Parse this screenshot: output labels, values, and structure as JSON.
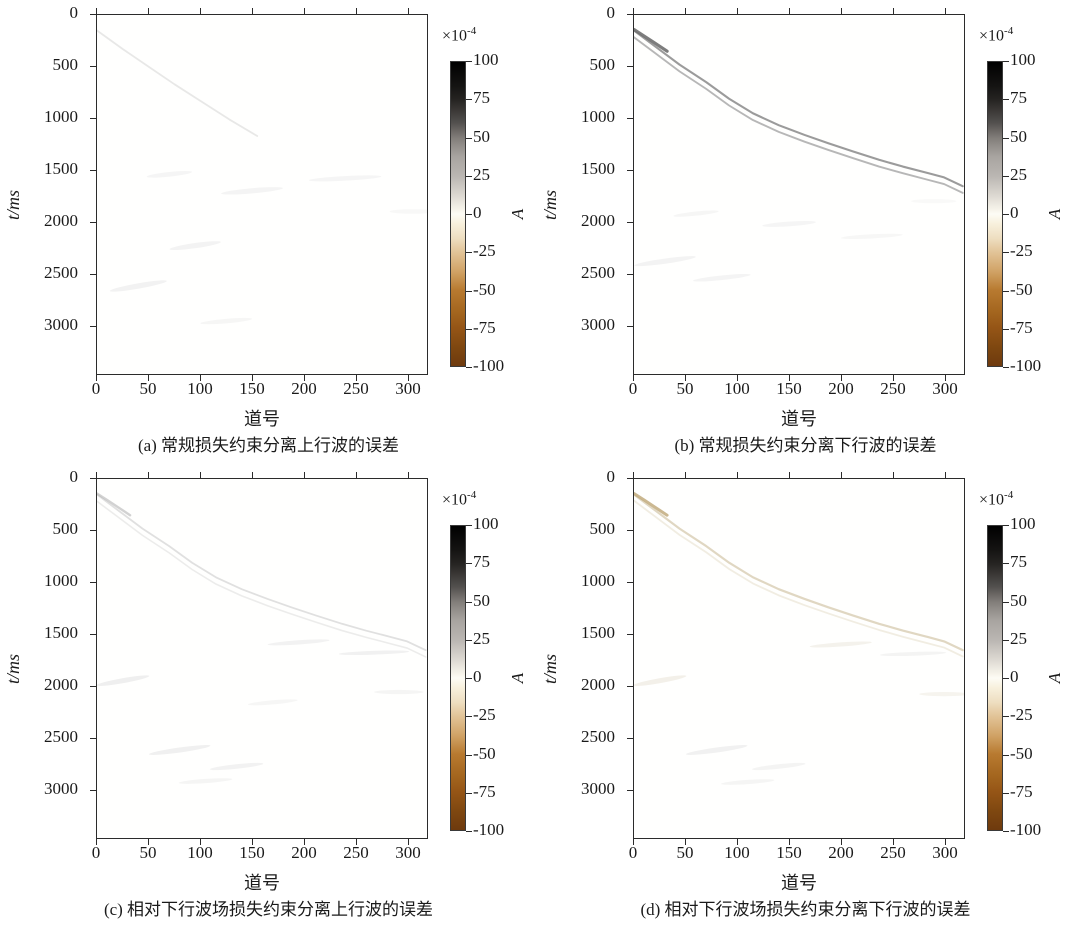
{
  "figure": {
    "background": "#ffffff"
  },
  "axes": {
    "xlabel": "道号",
    "ylabel": "t/ms",
    "x_ticks": [
      0,
      50,
      100,
      150,
      200,
      250,
      300
    ],
    "y_ticks": [
      0,
      500,
      1000,
      1500,
      2000,
      2500,
      3000
    ]
  },
  "colorbar": {
    "scale_mantissa": "×10",
    "scale_exponent": "-4",
    "label": "A",
    "ticks": [
      100,
      75,
      50,
      25,
      0,
      -25,
      -50,
      -75,
      -100
    ],
    "top_color": "#000000",
    "zero_color": "#fdfcf5",
    "bottom_color": "#6e3a0e"
  },
  "panels": [
    {
      "id": "a",
      "caption": "(a) 常规损失约束分离上行波的误差"
    },
    {
      "id": "b",
      "caption": "(b) 常规损失约束分离下行波的误差"
    },
    {
      "id": "c",
      "caption": "(c) 相对下行波场损失约束分离上行波的误差"
    },
    {
      "id": "d",
      "caption": "(d) 相对下行波场损失约束分离下行波的误差"
    }
  ],
  "shared": {
    "direct_wave_points": [
      [
        0,
        150
      ],
      [
        20,
        300
      ],
      [
        44,
        480
      ],
      [
        70,
        650
      ],
      [
        92,
        810
      ],
      [
        115,
        950
      ],
      [
        140,
        1065
      ],
      [
        165,
        1160
      ],
      [
        188,
        1240
      ],
      [
        212,
        1320
      ],
      [
        237,
        1400
      ],
      [
        260,
        1465
      ],
      [
        285,
        1530
      ],
      [
        300,
        1570
      ],
      [
        318,
        1655
      ]
    ],
    "head_points": [
      [
        0,
        140
      ],
      [
        10,
        205
      ],
      [
        20,
        270
      ],
      [
        32,
        350
      ]
    ]
  },
  "chart_data": [
    {
      "type": "heatmap",
      "panel": "a",
      "title": "(a) 常规损失约束分离上行波的误差",
      "xlabel": "道号",
      "ylabel": "t/ms",
      "xlim": [
        0,
        318
      ],
      "ylim": [
        0,
        3470
      ],
      "y_inverted": true,
      "x_ticks": [
        0,
        50,
        100,
        150,
        200,
        250,
        300
      ],
      "y_ticks": [
        0,
        500,
        1000,
        1500,
        2000,
        2500,
        3000
      ],
      "value_scale": "1e-4",
      "value_range_1e4": [
        -100,
        100
      ],
      "colorbar_label": "A",
      "background_value": 0,
      "features": [
        {
          "kind": "curve",
          "name": "faint-direct-residual",
          "points": [
            [
              0,
              150
            ],
            [
              25,
              330
            ],
            [
              50,
              500
            ],
            [
              75,
              670
            ],
            [
              100,
              830
            ],
            [
              128,
              1010
            ],
            [
              155,
              1170
            ]
          ],
          "amplitude_1e4": 5,
          "color": "#cccccc",
          "width": 1.8,
          "opacity": 0.45
        },
        {
          "kind": "smudge",
          "name": "residual-spot",
          "x": 40,
          "t": 2620,
          "rx": 28,
          "ry": 26,
          "rot": -10,
          "color": "#e8e8e8",
          "opacity": 0.55,
          "amplitude_1e4": 3
        },
        {
          "kind": "smudge",
          "name": "residual-spot",
          "x": 95,
          "t": 2230,
          "rx": 25,
          "ry": 25,
          "rot": -8,
          "color": "#e8e8e8",
          "opacity": 0.5,
          "amplitude_1e4": 3
        },
        {
          "kind": "smudge",
          "name": "residual-spot",
          "x": 70,
          "t": 1540,
          "rx": 22,
          "ry": 22,
          "rot": -6,
          "color": "#ececec",
          "opacity": 0.5,
          "amplitude_1e4": 2
        },
        {
          "kind": "smudge",
          "name": "residual-spot",
          "x": 150,
          "t": 1700,
          "rx": 30,
          "ry": 25,
          "rot": -5,
          "color": "#eaeaea",
          "opacity": 0.5,
          "amplitude_1e4": 2
        },
        {
          "kind": "smudge",
          "name": "residual-spot",
          "x": 240,
          "t": 1580,
          "rx": 35,
          "ry": 22,
          "rot": -3,
          "color": "#ececec",
          "opacity": 0.5,
          "amplitude_1e4": 2
        },
        {
          "kind": "smudge",
          "name": "residual-spot",
          "x": 125,
          "t": 2960,
          "rx": 25,
          "ry": 22,
          "rot": -5,
          "color": "#ececec",
          "opacity": 0.45,
          "amplitude_1e4": 2
        },
        {
          "kind": "smudge",
          "name": "residual-spot",
          "x": 305,
          "t": 1900,
          "rx": 22,
          "ry": 22,
          "rot": 0,
          "color": "#efefef",
          "opacity": 0.45,
          "amplitude_1e4": 2
        }
      ]
    },
    {
      "type": "heatmap",
      "panel": "b",
      "title": "(b) 常规损失约束分离下行波的误差",
      "xlabel": "道号",
      "ylabel": "t/ms",
      "xlim": [
        0,
        318
      ],
      "ylim": [
        0,
        3470
      ],
      "y_inverted": true,
      "x_ticks": [
        0,
        50,
        100,
        150,
        200,
        250,
        300
      ],
      "y_ticks": [
        0,
        500,
        1000,
        1500,
        2000,
        2500,
        3000
      ],
      "value_scale": "1e-4",
      "value_range_1e4": [
        -100,
        100
      ],
      "colorbar_label": "A",
      "background_value": 0,
      "features": [
        {
          "kind": "curve",
          "name": "direct-wave-residual-upper",
          "points_ref": "direct_wave_points",
          "amplitude_1e4": 30,
          "color": "#909090",
          "width": 2.1,
          "opacity": 0.9
        },
        {
          "kind": "curve",
          "name": "direct-wave-residual-lower",
          "points_ref": "direct_wave_points",
          "dt": 65,
          "amplitude_1e4": 25,
          "color": "#a5a5a5",
          "width": 1.9,
          "opacity": 0.8
        },
        {
          "kind": "curve",
          "name": "residual-head",
          "points_ref": "head_points",
          "amplitude_1e4": 55,
          "color": "#6f6f6f",
          "width": 3.2,
          "opacity": 0.9
        },
        {
          "kind": "smudge",
          "name": "residual-spot",
          "x": 30,
          "t": 2380,
          "rx": 30,
          "ry": 25,
          "rot": -8,
          "color": "#e9e9e9",
          "opacity": 0.55,
          "amplitude_1e4": 3
        },
        {
          "kind": "smudge",
          "name": "residual-spot",
          "x": 85,
          "t": 2540,
          "rx": 28,
          "ry": 22,
          "rot": -6,
          "color": "#e9e9e9",
          "opacity": 0.5,
          "amplitude_1e4": 3
        },
        {
          "kind": "smudge",
          "name": "residual-spot",
          "x": 150,
          "t": 2020,
          "rx": 26,
          "ry": 22,
          "rot": -4,
          "color": "#ececec",
          "opacity": 0.5,
          "amplitude_1e4": 2
        },
        {
          "kind": "smudge",
          "name": "residual-spot",
          "x": 60,
          "t": 1920,
          "rx": 22,
          "ry": 20,
          "rot": -6,
          "color": "#ececec",
          "opacity": 0.45,
          "amplitude_1e4": 2
        },
        {
          "kind": "smudge",
          "name": "residual-spot",
          "x": 230,
          "t": 2140,
          "rx": 30,
          "ry": 20,
          "rot": -3,
          "color": "#eeeeee",
          "opacity": 0.45,
          "amplitude_1e4": 2
        },
        {
          "kind": "smudge",
          "name": "residual-spot",
          "x": 290,
          "t": 1800,
          "rx": 22,
          "ry": 20,
          "rot": 0,
          "color": "#efefef",
          "opacity": 0.4,
          "amplitude_1e4": 2
        }
      ]
    },
    {
      "type": "heatmap",
      "panel": "c",
      "title": "(c) 相对下行波场损失约束分离上行波的误差",
      "xlabel": "道号",
      "ylabel": "t/ms",
      "xlim": [
        0,
        318
      ],
      "ylim": [
        0,
        3470
      ],
      "y_inverted": true,
      "x_ticks": [
        0,
        50,
        100,
        150,
        200,
        250,
        300
      ],
      "y_ticks": [
        0,
        500,
        1000,
        1500,
        2000,
        2500,
        3000
      ],
      "value_scale": "1e-4",
      "value_range_1e4": [
        -100,
        100
      ],
      "colorbar_label": "A",
      "background_value": 0,
      "features": [
        {
          "kind": "curve",
          "name": "faint-direct-residual-upper",
          "points_ref": "direct_wave_points",
          "amplitude_1e4": 10,
          "color": "#c2c2c2",
          "width": 1.8,
          "opacity": 0.5
        },
        {
          "kind": "curve",
          "name": "faint-direct-residual-lower",
          "points_ref": "direct_wave_points",
          "dt": 65,
          "amplitude_1e4": 8,
          "color": "#d0d0d0",
          "width": 1.6,
          "opacity": 0.4
        },
        {
          "kind": "curve",
          "name": "residual-head",
          "points_ref": "head_points",
          "amplitude_1e4": 15,
          "color": "#adadad",
          "width": 2.4,
          "opacity": 0.55
        },
        {
          "kind": "smudge",
          "name": "residual-spot",
          "x": 25,
          "t": 1950,
          "rx": 26,
          "ry": 24,
          "rot": -10,
          "color": "#e2e2e2",
          "opacity": 0.55,
          "amplitude_1e4": 4
        },
        {
          "kind": "smudge",
          "name": "residual-spot",
          "x": 80,
          "t": 2620,
          "rx": 30,
          "ry": 24,
          "rot": -8,
          "color": "#e2e2e2",
          "opacity": 0.5,
          "amplitude_1e4": 4
        },
        {
          "kind": "smudge",
          "name": "residual-spot",
          "x": 135,
          "t": 2780,
          "rx": 26,
          "ry": 22,
          "rot": -6,
          "color": "#e6e6e6",
          "opacity": 0.5,
          "amplitude_1e4": 3
        },
        {
          "kind": "smudge",
          "name": "residual-spot",
          "x": 195,
          "t": 1580,
          "rx": 30,
          "ry": 20,
          "rot": -4,
          "color": "#e6e6e6",
          "opacity": 0.5,
          "amplitude_1e4": 3
        },
        {
          "kind": "smudge",
          "name": "residual-spot",
          "x": 268,
          "t": 1680,
          "rx": 34,
          "ry": 18,
          "rot": -2,
          "color": "#e4e4e4",
          "opacity": 0.5,
          "amplitude_1e4": 3
        },
        {
          "kind": "smudge",
          "name": "residual-spot",
          "x": 292,
          "t": 2060,
          "rx": 24,
          "ry": 20,
          "rot": 0,
          "color": "#e8e8e8",
          "opacity": 0.45,
          "amplitude_1e4": 2
        },
        {
          "kind": "smudge",
          "name": "residual-spot",
          "x": 105,
          "t": 2920,
          "rx": 26,
          "ry": 20,
          "rot": -4,
          "color": "#e8e8e8",
          "opacity": 0.45,
          "amplitude_1e4": 2
        },
        {
          "kind": "smudge",
          "name": "residual-spot",
          "x": 170,
          "t": 2160,
          "rx": 24,
          "ry": 20,
          "rot": -5,
          "color": "#eaeaea",
          "opacity": 0.45,
          "amplitude_1e4": 2
        }
      ]
    },
    {
      "type": "heatmap",
      "panel": "d",
      "title": "(d) 相对下行波场损失约束分离下行波的误差",
      "xlabel": "道号",
      "ylabel": "t/ms",
      "xlim": [
        0,
        318
      ],
      "ylim": [
        0,
        3470
      ],
      "y_inverted": true,
      "x_ticks": [
        0,
        50,
        100,
        150,
        200,
        250,
        300
      ],
      "y_ticks": [
        0,
        500,
        1000,
        1500,
        2000,
        2500,
        3000
      ],
      "value_scale": "1e-4",
      "value_range_1e4": [
        -100,
        100
      ],
      "colorbar_label": "A",
      "background_value": 0,
      "features": [
        {
          "kind": "curve",
          "name": "faint-direct-residual-tan",
          "points_ref": "direct_wave_points",
          "amplitude_1e4": -12,
          "color": "#d5c9ad",
          "width": 2.2,
          "opacity": 0.75
        },
        {
          "kind": "curve",
          "name": "faint-direct-residual-lower",
          "points_ref": "direct_wave_points",
          "dt": 60,
          "amplitude_1e4": -8,
          "color": "#e3dbc6",
          "width": 1.8,
          "opacity": 0.5
        },
        {
          "kind": "curve",
          "name": "residual-head",
          "points_ref": "head_points",
          "amplitude_1e4": -25,
          "color": "#c2ab7e",
          "width": 3,
          "opacity": 0.85
        },
        {
          "kind": "smudge",
          "name": "residual-spot",
          "x": 25,
          "t": 1950,
          "rx": 26,
          "ry": 24,
          "rot": -10,
          "color": "#e7e2d4",
          "opacity": 0.5,
          "amplitude_1e4": -3
        },
        {
          "kind": "smudge",
          "name": "residual-spot",
          "x": 80,
          "t": 2620,
          "rx": 30,
          "ry": 24,
          "rot": -8,
          "color": "#e4e4e4",
          "opacity": 0.5,
          "amplitude_1e4": 3
        },
        {
          "kind": "smudge",
          "name": "residual-spot",
          "x": 140,
          "t": 2780,
          "rx": 26,
          "ry": 22,
          "rot": -6,
          "color": "#e7e7e7",
          "opacity": 0.45,
          "amplitude_1e4": 2
        },
        {
          "kind": "smudge",
          "name": "residual-spot",
          "x": 200,
          "t": 1600,
          "rx": 30,
          "ry": 20,
          "rot": -4,
          "color": "#eae5da",
          "opacity": 0.5,
          "amplitude_1e4": -2
        },
        {
          "kind": "smudge",
          "name": "residual-spot",
          "x": 270,
          "t": 1690,
          "rx": 32,
          "ry": 18,
          "rot": -2,
          "color": "#e6e6e6",
          "opacity": 0.45,
          "amplitude_1e4": 2
        },
        {
          "kind": "smudge",
          "name": "residual-spot",
          "x": 110,
          "t": 2930,
          "rx": 26,
          "ry": 20,
          "rot": -4,
          "color": "#e9e9e9",
          "opacity": 0.45,
          "amplitude_1e4": 2
        },
        {
          "kind": "smudge",
          "name": "residual-spot",
          "x": 300,
          "t": 2080,
          "rx": 24,
          "ry": 20,
          "rot": 0,
          "color": "#eae6dc",
          "opacity": 0.45,
          "amplitude_1e4": -2
        }
      ]
    }
  ]
}
